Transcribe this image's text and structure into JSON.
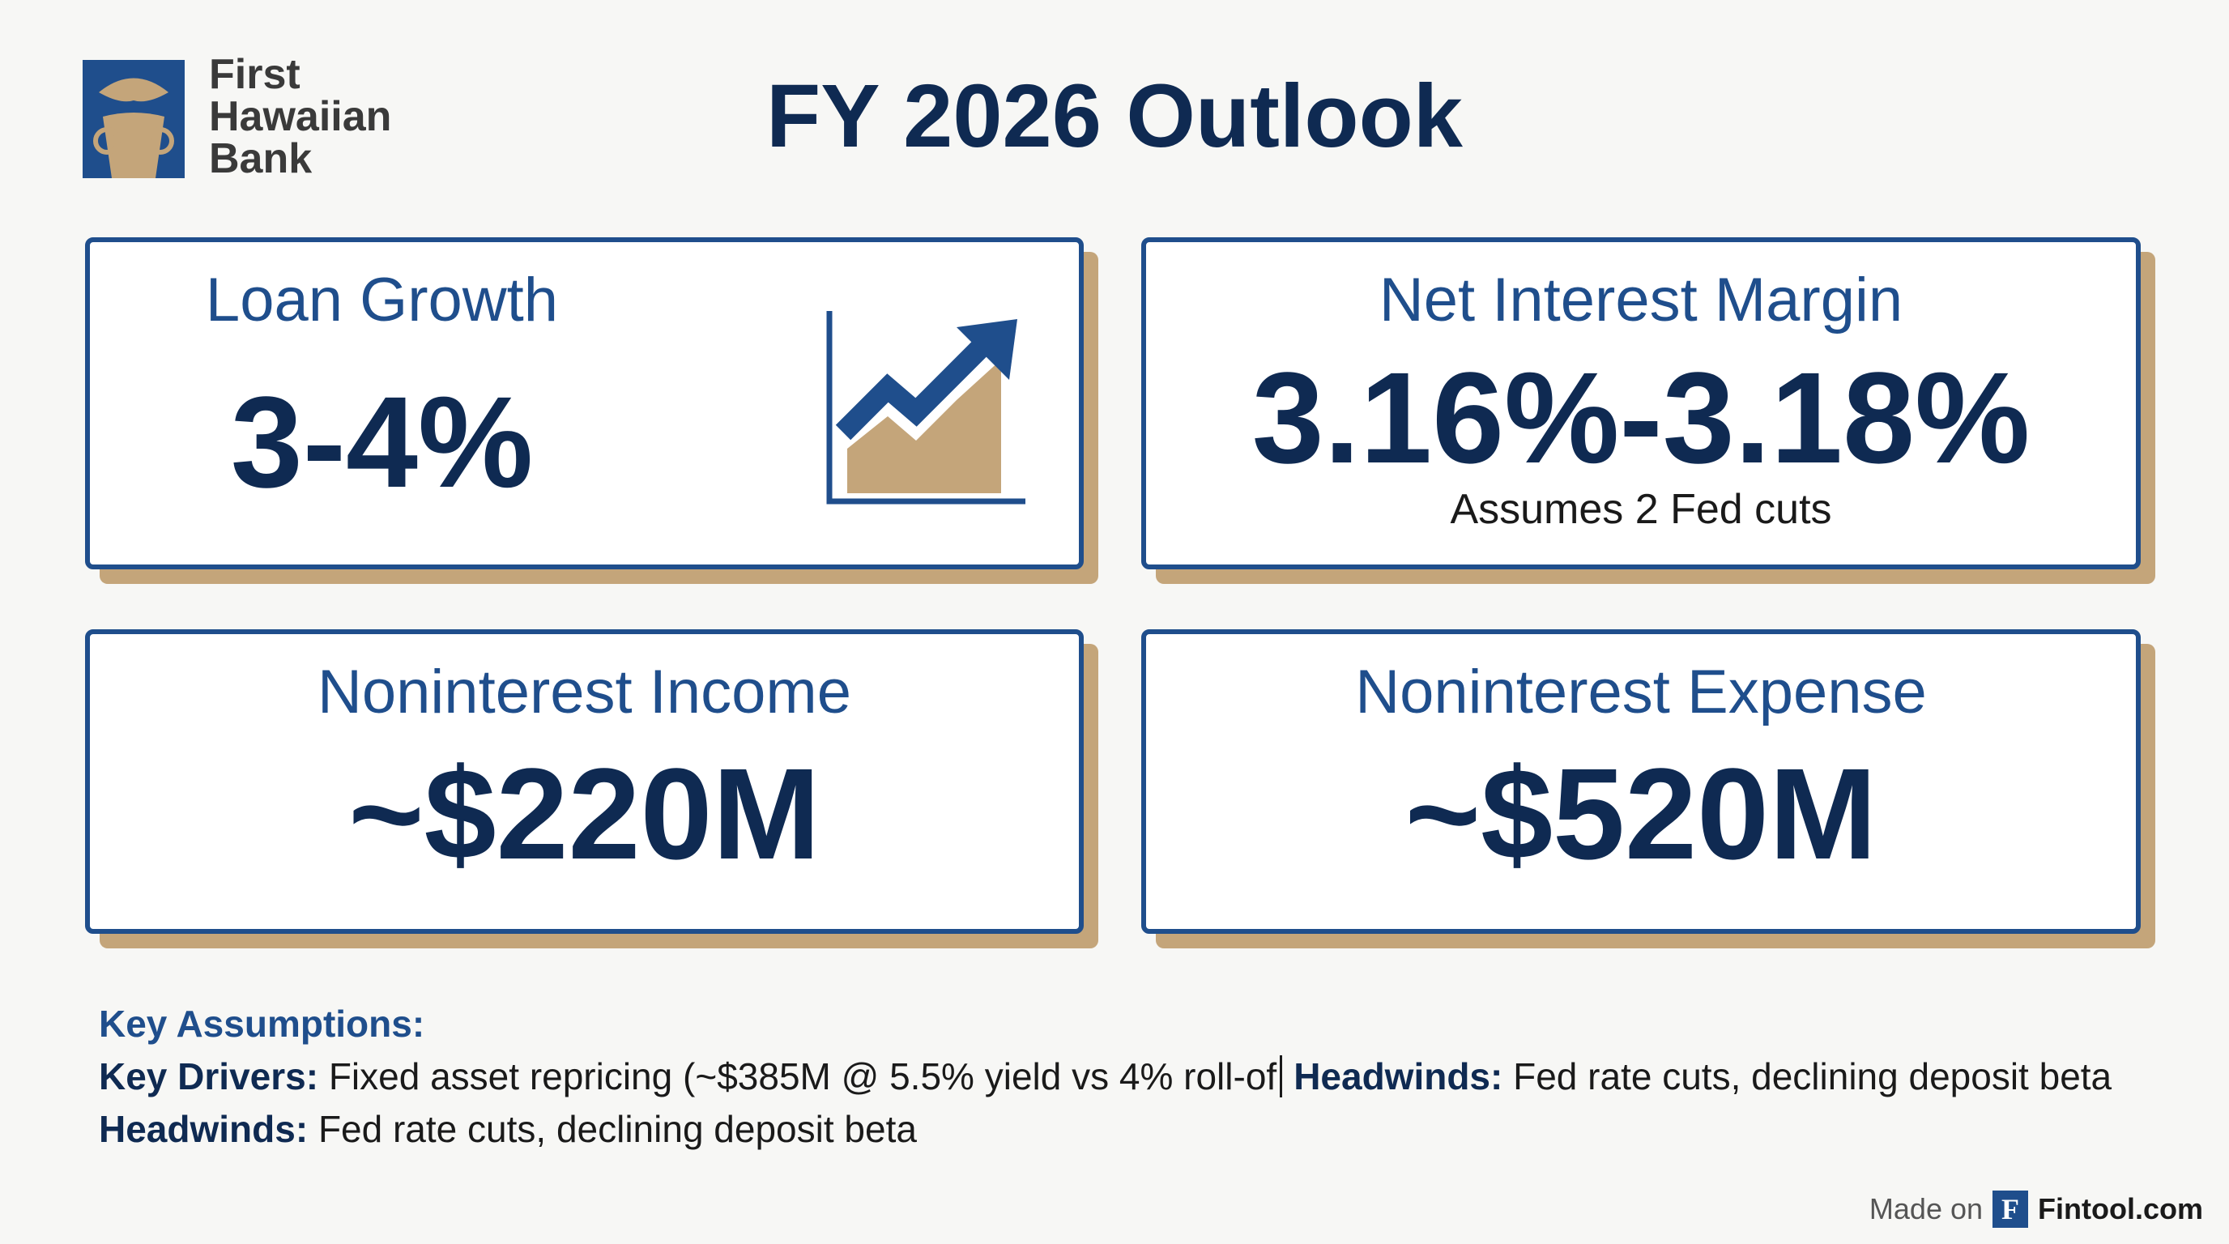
{
  "logo": {
    "lines": [
      "First",
      "Hawaiian",
      "Bank"
    ]
  },
  "header": {
    "title": "FY 2026 Outlook"
  },
  "cards": [
    {
      "label": "Loan Growth",
      "value": "3-4%"
    },
    {
      "label": "Net Interest Margin",
      "value": "3.16%-3.18%",
      "note": "Assumes 2 Fed cuts"
    },
    {
      "label": "Noninterest Income",
      "value": "~$220M"
    },
    {
      "label": "Noninterest Expense",
      "value": "~$520M"
    }
  ],
  "assumptions": {
    "heading": "Key Assumptions:",
    "line1": [
      {
        "label": "Key Drivers:",
        "text": "Fixed asset repricing (~$385M @ 5.5% yield vs 4% roll-of"
      },
      {
        "label": "Headwinds:",
        "text": "Fed rate cuts, declining deposit beta"
      }
    ],
    "line2": [
      {
        "label": "Headwinds:",
        "text": "Fed rate cuts, declining deposit beta"
      }
    ]
  },
  "footer": {
    "made_on": "Made on",
    "badge": "F",
    "brand": "Fintool.com"
  }
}
